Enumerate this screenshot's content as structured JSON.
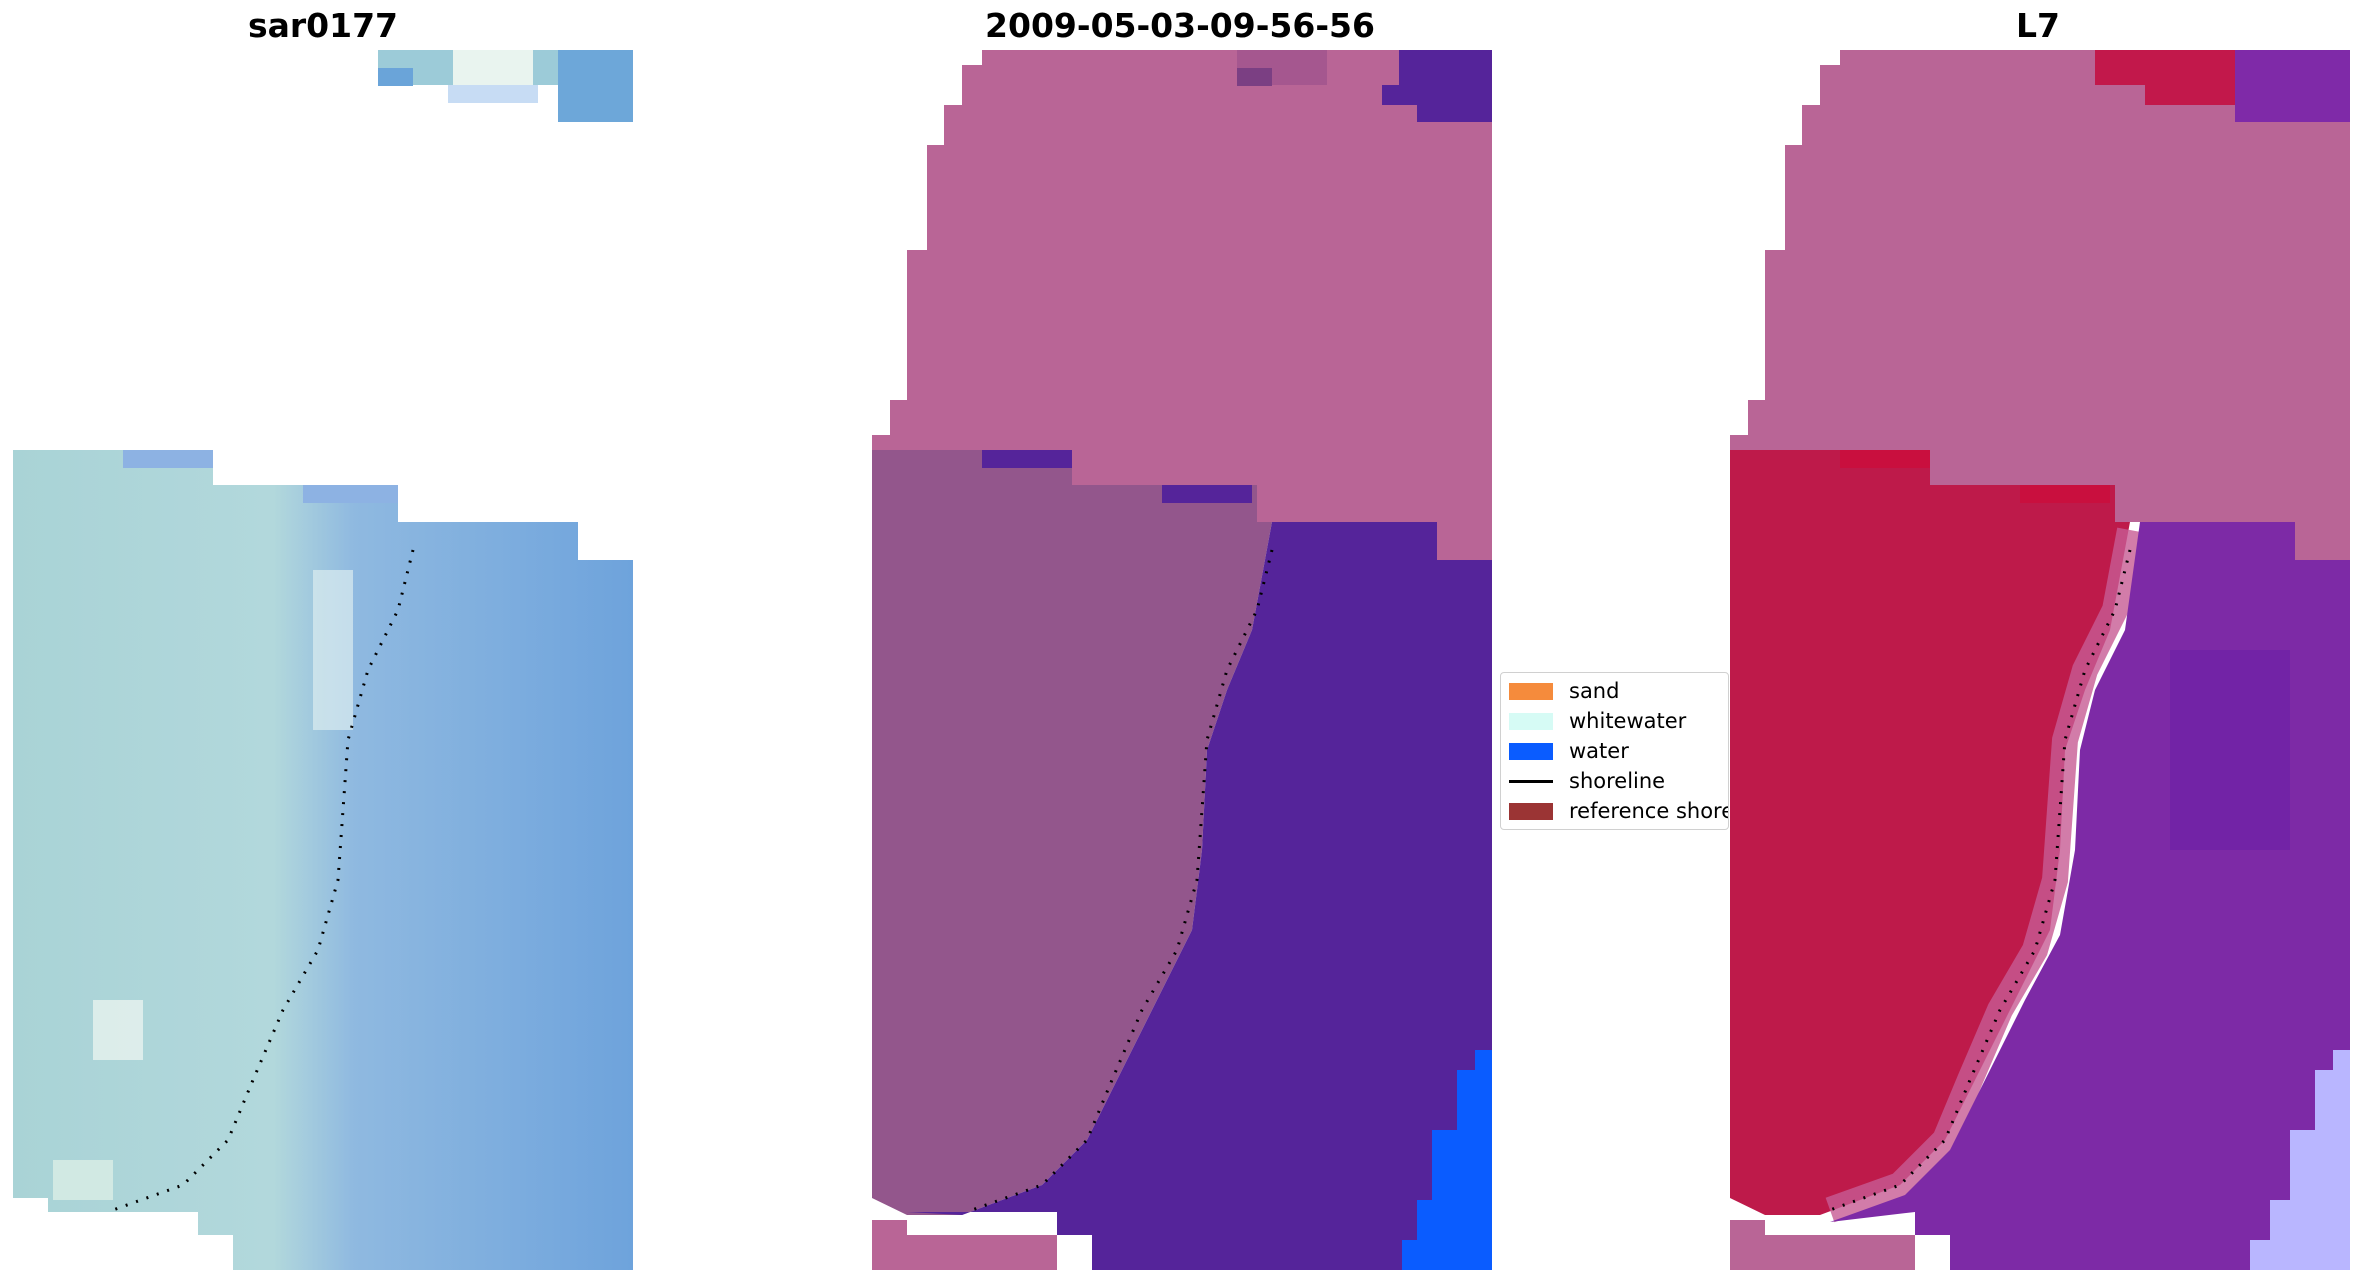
{
  "panels": [
    {
      "title": "sar0177"
    },
    {
      "title": "2009-05-03-09-56-56"
    },
    {
      "title": "L7"
    }
  ],
  "legend": {
    "items": [
      {
        "label": "sand",
        "kind": "patch",
        "color": "#f58b3c"
      },
      {
        "label": "whitewater",
        "kind": "patch",
        "color": "#d6fbf5"
      },
      {
        "label": "water",
        "kind": "patch",
        "color": "#0a5cff"
      },
      {
        "label": "shoreline",
        "kind": "line",
        "color": "#000000"
      },
      {
        "label": "reference shoreline",
        "kind": "patch",
        "color": "#9b3434"
      }
    ]
  },
  "colors": {
    "rgb_sand": "#aed2d6",
    "rgb_water": "#6fa2e0",
    "class_land": "#b96596",
    "class_sand": "#93568c",
    "class_water": "#55249a",
    "class_water_bright": "#0a5cff",
    "mndwi_land": "#be1a4a",
    "mndwi_water": "#7d2aa6",
    "mndwi_bright": "#b9b6ff"
  }
}
